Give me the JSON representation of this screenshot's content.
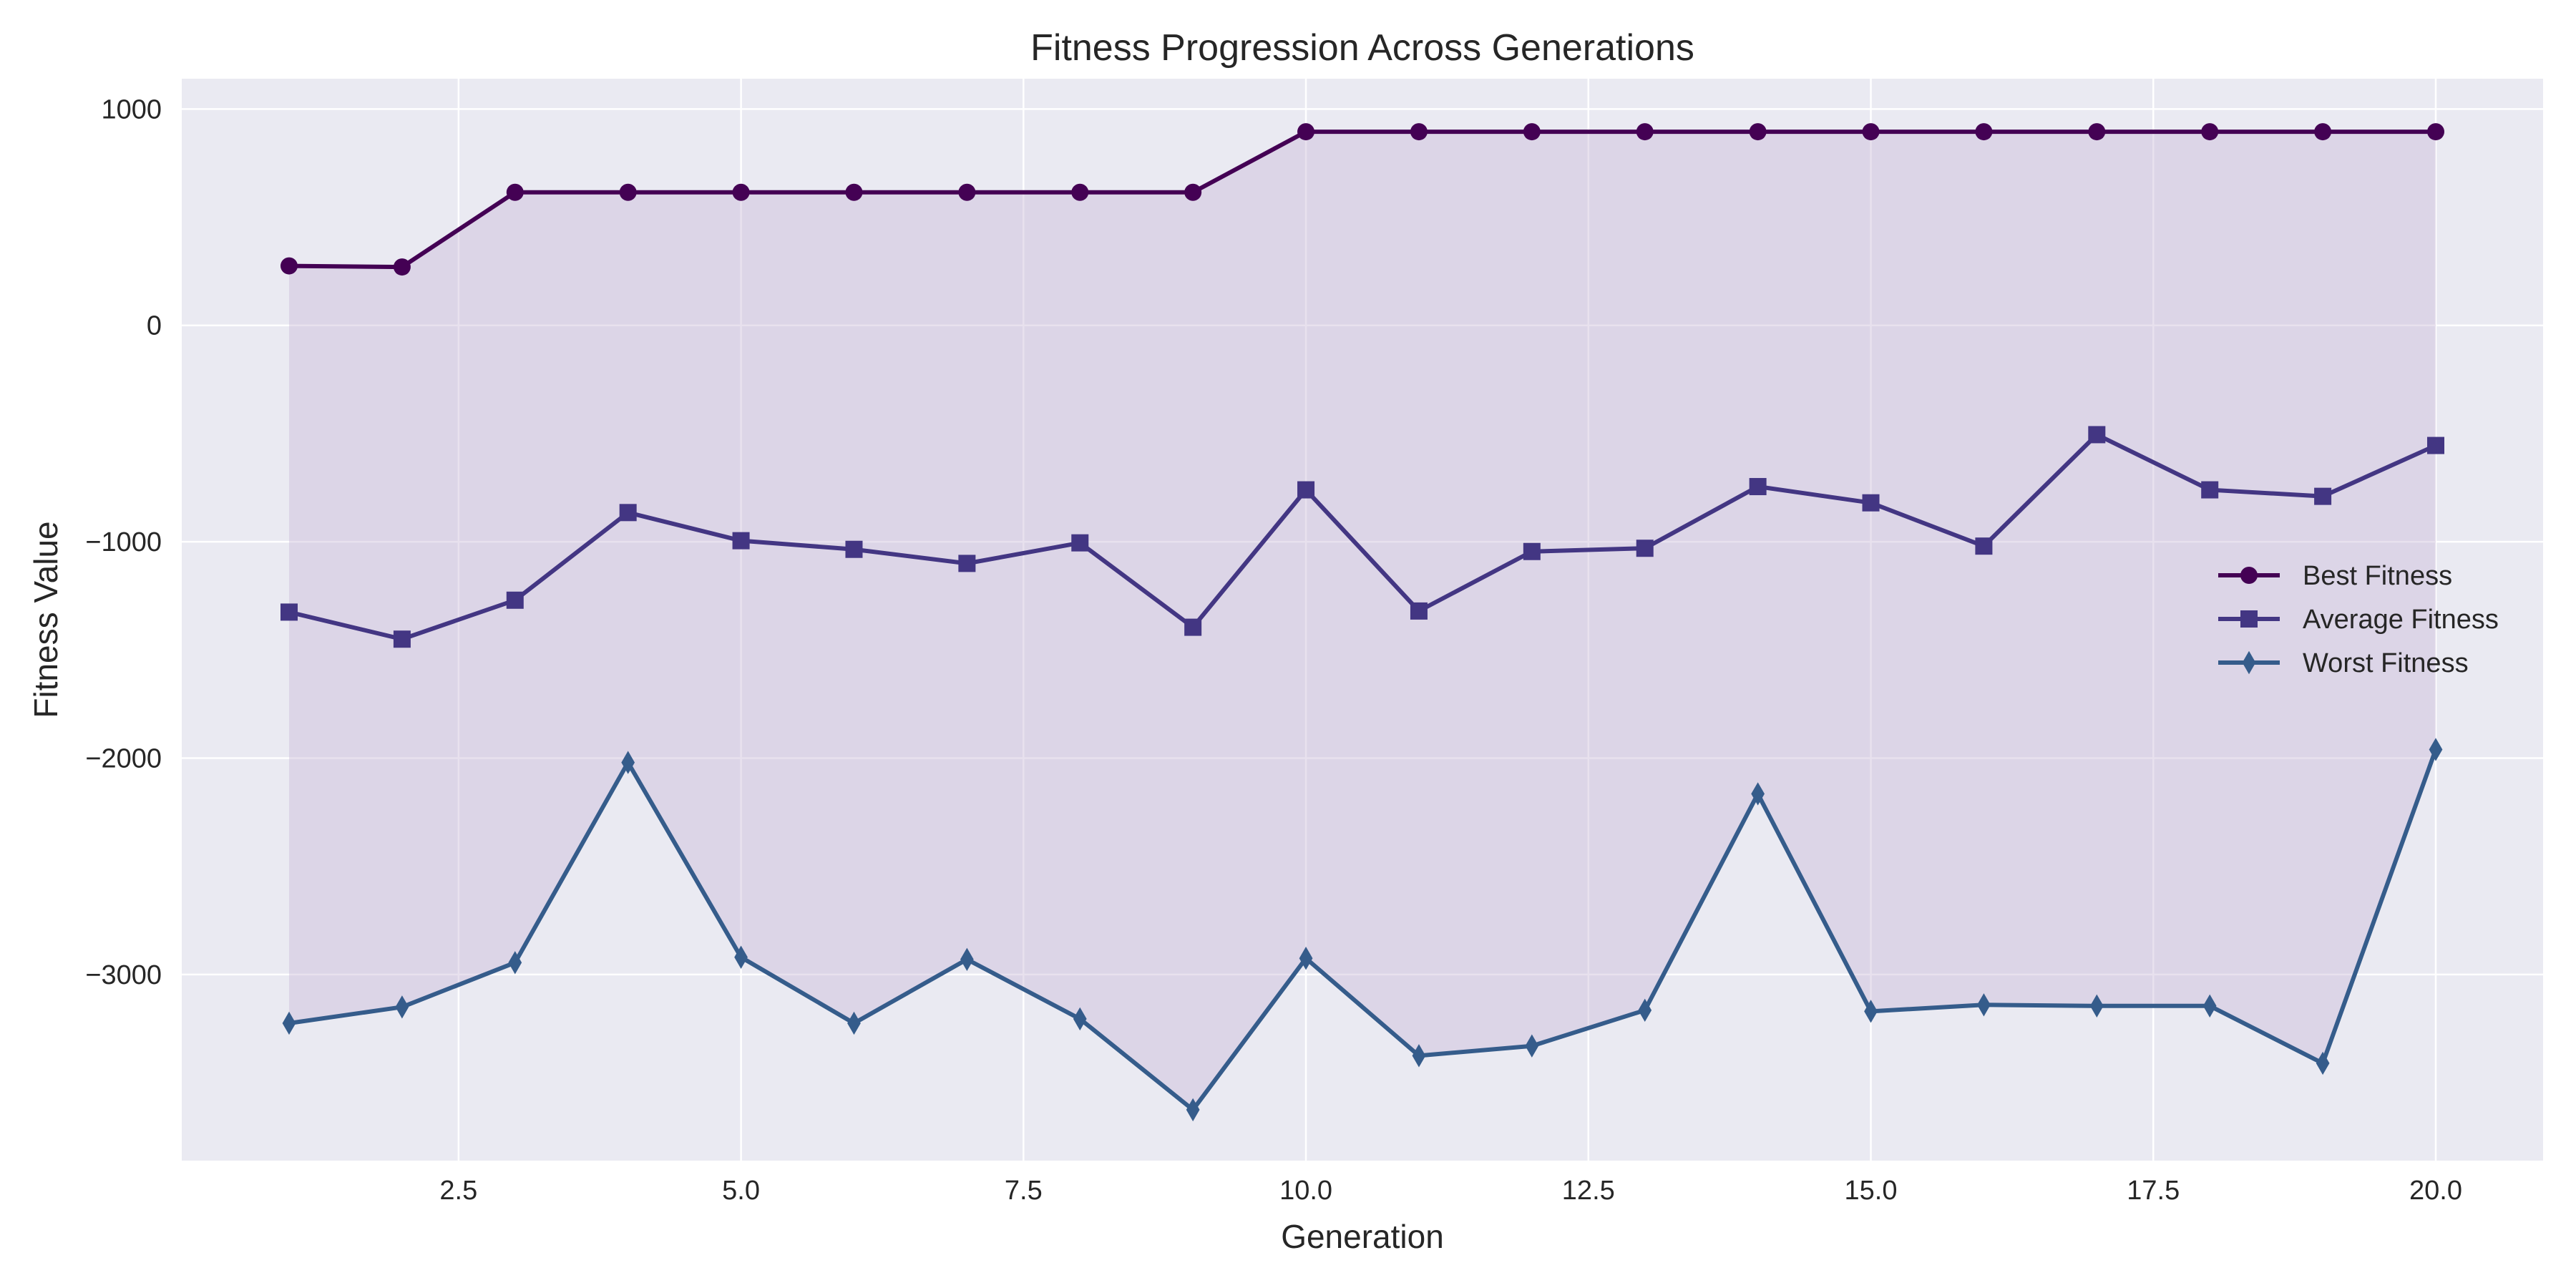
{
  "chart_data": {
    "type": "line",
    "title": "Fitness Progression Across Generations",
    "xlabel": "Generation",
    "ylabel": "Fitness Value",
    "x": [
      1,
      2,
      3,
      4,
      5,
      6,
      7,
      8,
      9,
      10,
      11,
      12,
      13,
      14,
      15,
      16,
      17,
      18,
      19,
      20
    ],
    "xlim": [
      0.05,
      20.95
    ],
    "ylim": [
      -3860,
      1140
    ],
    "xticks": [
      2.5,
      5.0,
      7.5,
      10.0,
      12.5,
      15.0,
      17.5,
      20.0
    ],
    "xtick_labels": [
      "2.5",
      "5.0",
      "7.5",
      "10.0",
      "12.5",
      "15.0",
      "17.5",
      "20.0"
    ],
    "yticks": [
      1000,
      0,
      -1000,
      -2000,
      -3000
    ],
    "ytick_labels": [
      "1000",
      "0",
      "−1000",
      "−2000",
      "−3000"
    ],
    "grid": true,
    "legend_position": "center-right",
    "fill_between": {
      "upper": "Best Fitness",
      "lower": "Worst Fitness",
      "color": "#cbbcd9"
    },
    "series": [
      {
        "name": "Best Fitness",
        "marker": "circle",
        "color": "#440154",
        "values": [
          275,
          270,
          615,
          615,
          615,
          615,
          615,
          615,
          615,
          895,
          895,
          895,
          895,
          895,
          895,
          895,
          895,
          895,
          895,
          895
        ]
      },
      {
        "name": "Average Fitness",
        "marker": "square",
        "color": "#433683",
        "values": [
          -1325,
          -1450,
          -1270,
          -865,
          -995,
          -1035,
          -1100,
          -1005,
          -1395,
          -760,
          -1320,
          -1045,
          -1030,
          -745,
          -820,
          -1020,
          -505,
          -760,
          -790,
          -555
        ]
      },
      {
        "name": "Worst Fitness",
        "marker": "diamond",
        "color": "#355c8b",
        "values": [
          -3225,
          -3150,
          -2945,
          -2020,
          -2920,
          -3225,
          -2930,
          -3205,
          -3625,
          -2925,
          -3375,
          -3330,
          -3165,
          -2165,
          -3170,
          -3140,
          -3145,
          -3145,
          -3410,
          -1960
        ]
      }
    ]
  }
}
